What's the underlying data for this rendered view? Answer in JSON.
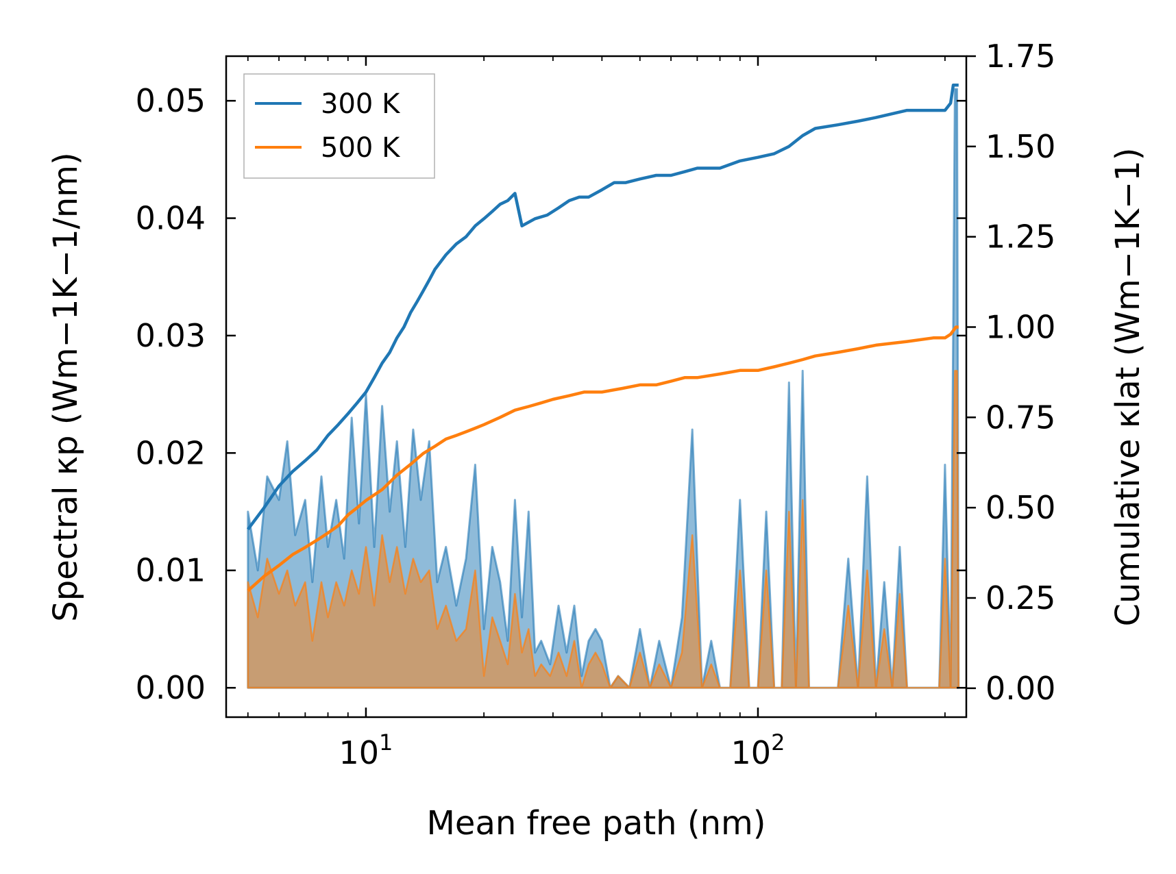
{
  "chart_data": {
    "type": "area",
    "xlabel": "Mean free path (nm)",
    "ylabel_left": "Spectral κp (Wm−1K−1/nm)",
    "ylabel_right": "Cumulative κlat (Wm−1K−1)",
    "xscale": "log",
    "xlim": [
      4.4,
      340
    ],
    "ylim_left": [
      -0.0025,
      0.0538
    ],
    "ylim_right": [
      -0.08,
      1.75
    ],
    "x_ticks": [
      10,
      100
    ],
    "x_tick_labels": [
      {
        "base": "10",
        "exp": "1"
      },
      {
        "base": "10",
        "exp": "2"
      }
    ],
    "y_ticks_left": [
      "0.00",
      "0.01",
      "0.02",
      "0.03",
      "0.04",
      "0.05"
    ],
    "y_ticks_right": [
      "0.00",
      "0.25",
      "0.50",
      "0.75",
      "1.00",
      "1.25",
      "1.50",
      "1.75"
    ],
    "legend": {
      "position": "top-left",
      "entries": [
        "300 K",
        "500 K"
      ]
    },
    "colors": {
      "300K": "#1f77b4",
      "500K": "#ff7f0e"
    },
    "spectral_300K": {
      "x": [
        5,
        5.3,
        5.6,
        6,
        6.3,
        6.6,
        7,
        7.3,
        7.7,
        8,
        8.4,
        8.8,
        9.2,
        9.6,
        10,
        10.5,
        11,
        11.5,
        12,
        12.6,
        13.2,
        13.8,
        14.5,
        15.2,
        16,
        17,
        18,
        19,
        20,
        21,
        22,
        23,
        24,
        25,
        26,
        27,
        28,
        29.5,
        31,
        32.5,
        34,
        35.5,
        37,
        38.5,
        40,
        42,
        44,
        47,
        50,
        53,
        56,
        60,
        64,
        68,
        72,
        76,
        80,
        85,
        90,
        95,
        100,
        105,
        110,
        115,
        120,
        125,
        130,
        135,
        140,
        150,
        160,
        170,
        180,
        190,
        200,
        210,
        220,
        230,
        240,
        250,
        260,
        270,
        280,
        290,
        300,
        310,
        318,
        322,
        325
      ],
      "y": [
        0.015,
        0.01,
        0.018,
        0.016,
        0.021,
        0.013,
        0.016,
        0.009,
        0.018,
        0.012,
        0.016,
        0.011,
        0.023,
        0.014,
        0.025,
        0.012,
        0.024,
        0.015,
        0.021,
        0.012,
        0.022,
        0.016,
        0.021,
        0.009,
        0.012,
        0.007,
        0.011,
        0.019,
        0.005,
        0.012,
        0.009,
        0.004,
        0.016,
        0.006,
        0.015,
        0.003,
        0.004,
        0.002,
        0.007,
        0.003,
        0.007,
        0.001,
        0.004,
        0.005,
        0.004,
        0,
        0.001,
        0,
        0.005,
        0,
        0.004,
        0,
        0.006,
        0.022,
        0,
        0.004,
        0,
        0,
        0.016,
        0,
        0,
        0.015,
        0,
        0,
        0.026,
        0,
        0.027,
        0,
        0,
        0,
        0,
        0.011,
        0,
        0.018,
        0,
        0.009,
        0,
        0.012,
        0,
        0,
        0,
        0,
        0,
        0,
        0.019,
        0,
        0.051,
        0.051,
        0
      ]
    },
    "spectral_500K": {
      "x": [
        5,
        5.3,
        5.6,
        6,
        6.3,
        6.6,
        7,
        7.3,
        7.7,
        8,
        8.4,
        8.8,
        9.2,
        9.6,
        10,
        10.5,
        11,
        11.5,
        12,
        12.6,
        13.2,
        13.8,
        14.5,
        15.2,
        16,
        17,
        18,
        19,
        20,
        21,
        22,
        23,
        24,
        25,
        26,
        27,
        28,
        29.5,
        31,
        32.5,
        34,
        35.5,
        37,
        38.5,
        40,
        42,
        44,
        47,
        50,
        53,
        56,
        60,
        64,
        68,
        72,
        76,
        80,
        85,
        90,
        95,
        100,
        105,
        110,
        115,
        120,
        125,
        130,
        135,
        140,
        150,
        160,
        170,
        180,
        190,
        200,
        210,
        220,
        230,
        240,
        250,
        260,
        270,
        280,
        290,
        300,
        310,
        318,
        322,
        325
      ],
      "y": [
        0.009,
        0.006,
        0.011,
        0.008,
        0.01,
        0.007,
        0.009,
        0.004,
        0.009,
        0.006,
        0.009,
        0.007,
        0.01,
        0.008,
        0.012,
        0.007,
        0.013,
        0.009,
        0.012,
        0.008,
        0.011,
        0.009,
        0.01,
        0.005,
        0.007,
        0.004,
        0.005,
        0.01,
        0.001,
        0.006,
        0.004,
        0.002,
        0.008,
        0.003,
        0.005,
        0.001,
        0.002,
        0.001,
        0.003,
        0.001,
        0.004,
        0,
        0.002,
        0.003,
        0.002,
        0,
        0.001,
        0,
        0.003,
        0,
        0.002,
        0,
        0.003,
        0.013,
        0,
        0.002,
        0,
        0,
        0.01,
        0,
        0,
        0.01,
        0,
        0,
        0.015,
        0,
        0.016,
        0,
        0,
        0,
        0,
        0.007,
        0,
        0.01,
        0,
        0.005,
        0,
        0.008,
        0,
        0,
        0,
        0,
        0,
        0,
        0.011,
        0,
        0.027,
        0.027,
        0
      ]
    },
    "cumulative_300K": {
      "x": [
        5,
        5.5,
        6,
        6.5,
        7,
        7.5,
        8,
        8.5,
        9,
        9.5,
        10,
        10.5,
        11,
        11.5,
        12,
        12.5,
        13,
        13.5,
        14,
        14.5,
        15,
        16,
        17,
        18,
        19,
        20,
        21,
        22,
        23,
        24,
        25,
        27,
        29,
        31,
        33,
        35,
        37,
        40,
        43,
        46,
        50,
        55,
        60,
        65,
        70,
        75,
        80,
        90,
        100,
        110,
        120,
        130,
        140,
        160,
        180,
        200,
        240,
        280,
        300,
        310,
        315,
        325
      ],
      "y": [
        0.44,
        0.5,
        0.56,
        0.6,
        0.63,
        0.66,
        0.7,
        0.73,
        0.76,
        0.79,
        0.82,
        0.86,
        0.9,
        0.93,
        0.97,
        1.0,
        1.04,
        1.07,
        1.1,
        1.13,
        1.16,
        1.2,
        1.23,
        1.25,
        1.28,
        1.3,
        1.32,
        1.34,
        1.35,
        1.37,
        1.28,
        1.3,
        1.31,
        1.33,
        1.35,
        1.36,
        1.36,
        1.38,
        1.4,
        1.4,
        1.41,
        1.42,
        1.42,
        1.43,
        1.44,
        1.44,
        1.44,
        1.46,
        1.47,
        1.48,
        1.5,
        1.53,
        1.55,
        1.56,
        1.57,
        1.58,
        1.6,
        1.6,
        1.6,
        1.62,
        1.67,
        1.67
      ]
    },
    "cumulative_500K": {
      "x": [
        5,
        5.5,
        6,
        6.5,
        7,
        7.5,
        8,
        8.5,
        9,
        9.5,
        10,
        11,
        12,
        13,
        14,
        15,
        16,
        17,
        18,
        19,
        20,
        22,
        24,
        26,
        28,
        30,
        33,
        36,
        40,
        45,
        50,
        55,
        60,
        65,
        70,
        80,
        90,
        100,
        110,
        120,
        130,
        140,
        160,
        180,
        200,
        240,
        280,
        300,
        310,
        320,
        325
      ],
      "y": [
        0.27,
        0.31,
        0.34,
        0.37,
        0.39,
        0.41,
        0.43,
        0.45,
        0.48,
        0.5,
        0.52,
        0.55,
        0.59,
        0.62,
        0.65,
        0.67,
        0.69,
        0.7,
        0.71,
        0.72,
        0.73,
        0.75,
        0.77,
        0.78,
        0.79,
        0.8,
        0.81,
        0.82,
        0.82,
        0.83,
        0.84,
        0.84,
        0.85,
        0.86,
        0.86,
        0.87,
        0.88,
        0.88,
        0.89,
        0.9,
        0.91,
        0.92,
        0.93,
        0.94,
        0.95,
        0.96,
        0.97,
        0.97,
        0.98,
        1.0,
        1.0
      ]
    }
  }
}
